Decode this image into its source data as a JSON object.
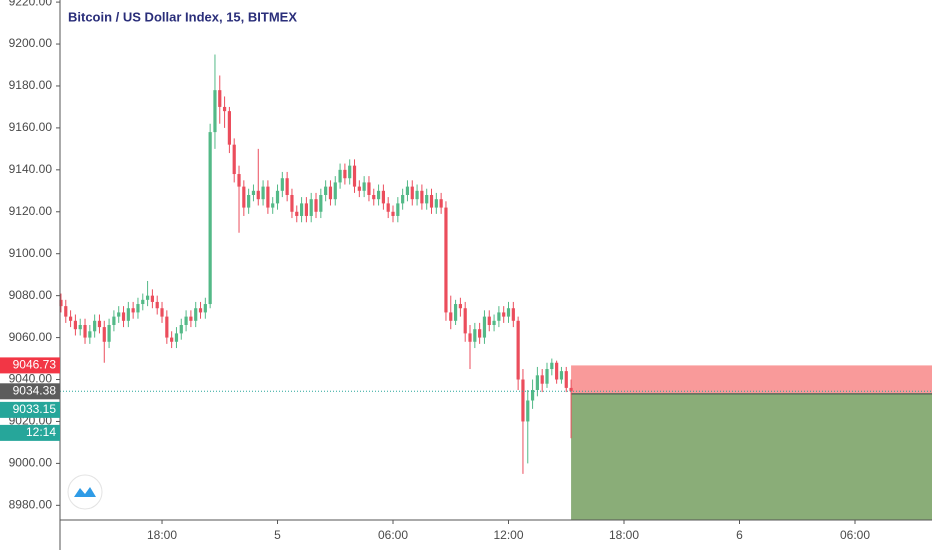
{
  "chart_data": {
    "type": "candlestick",
    "title": "Bitcoin / US Dollar Index, 15, BITMEX",
    "x": [
      -11.25,
      -11,
      -10.75,
      -10.5,
      -10.25,
      -10,
      -9.75,
      -9.5,
      -9.25,
      -9,
      -8.75,
      -8.5,
      -8.25,
      -8,
      -7.75,
      -7.5,
      -7.25,
      -7,
      -6.75,
      -6.5,
      -6.25,
      -6,
      -5.75,
      -5.5,
      -5.25,
      -5,
      -4.75,
      -4.5,
      -4.25,
      -4,
      -3.75,
      -3.5,
      -3.25,
      -3,
      -2.75,
      -2.5,
      -2.25,
      -2,
      -1.75,
      -1.5,
      -1.25,
      -1,
      -0.75,
      -0.5,
      -0.25,
      0,
      0.25,
      0.5,
      0.75,
      1,
      1.25,
      1.5,
      1.75,
      2,
      2.25,
      2.5,
      2.75,
      3,
      3.25,
      3.5,
      3.75,
      4,
      4.25,
      4.5,
      4.75,
      5,
      5.25,
      5.5,
      5.75,
      6,
      6.25,
      6.5,
      6.75,
      7,
      7.25,
      7.5,
      7.75,
      8,
      8.25,
      8.5,
      8.75,
      9,
      9.25,
      9.5,
      9.75,
      10,
      10.25,
      10.5,
      10.75,
      11,
      11.25,
      11.5,
      11.75,
      12,
      12.25,
      12.5,
      12.75,
      13,
      13.25,
      13.5,
      13.75,
      14,
      14.25,
      14.5,
      14.75,
      15,
      15.25
    ],
    "open": [
      9078,
      9075,
      9070,
      9068,
      9064,
      9066,
      9060,
      9063,
      9068,
      9065,
      9058,
      9066,
      9070,
      9072,
      9068,
      9074,
      9072,
      9076,
      9078,
      9080,
      9077,
      9074,
      9070,
      9060,
      9058,
      9062,
      9066,
      9070,
      9068,
      9074,
      9072,
      9076,
      9158,
      9178,
      9170,
      9168,
      9152,
      9138,
      9132,
      9122,
      9128,
      9130,
      9126,
      9132,
      9122,
      9124,
      9130,
      9136,
      9128,
      9120,
      9118,
      9124,
      9118,
      9126,
      9120,
      9128,
      9132,
      9126,
      9134,
      9140,
      9136,
      9142,
      9132,
      9130,
      9134,
      9128,
      9126,
      9130,
      9124,
      9120,
      9118,
      9124,
      9128,
      9132,
      9126,
      9130,
      9124,
      9128,
      9122,
      9126,
      9122,
      9072,
      9068,
      9076,
      9074,
      9062,
      9058,
      9064,
      9060,
      9070,
      9066,
      9068,
      9072,
      9070,
      9074,
      9068,
      9040,
      9020,
      9030,
      9035,
      9042,
      9038,
      9045,
      9048,
      9040,
      9044,
      9036
    ],
    "high": [
      9081,
      9078,
      9073,
      9071,
      9069,
      9069,
      9066,
      9071,
      9071,
      9068,
      9069,
      9073,
      9075,
      9075,
      9077,
      9077,
      9079,
      9081,
      9087,
      9083,
      9080,
      9077,
      9073,
      9063,
      9065,
      9069,
      9073,
      9073,
      9077,
      9077,
      9079,
      9162,
      9195,
      9185,
      9175,
      9170,
      9155,
      9142,
      9135,
      9131,
      9133,
      9150,
      9135,
      9135,
      9127,
      9133,
      9139,
      9139,
      9131,
      9123,
      9127,
      9127,
      9129,
      9129,
      9131,
      9135,
      9135,
      9137,
      9143,
      9143,
      9145,
      9145,
      9135,
      9137,
      9137,
      9131,
      9133,
      9133,
      9127,
      9123,
      9127,
      9131,
      9135,
      9135,
      9133,
      9133,
      9131,
      9131,
      9129,
      9129,
      9125,
      9080,
      9078,
      9079,
      9077,
      9066,
      9067,
      9067,
      9073,
      9073,
      9071,
      9075,
      9075,
      9077,
      9077,
      9070,
      9045,
      9035,
      9040,
      9046,
      9045,
      9048,
      9050,
      9049,
      9046,
      9046,
      9040
    ],
    "low": [
      9072,
      9067,
      9065,
      9061,
      9061,
      9057,
      9057,
      9060,
      9062,
      9048,
      9055,
      9063,
      9067,
      9065,
      9065,
      9069,
      9069,
      9073,
      9075,
      9074,
      9071,
      9067,
      9057,
      9055,
      9055,
      9059,
      9063,
      9065,
      9065,
      9069,
      9069,
      9074,
      9150,
      9162,
      9160,
      9148,
      9134,
      9110,
      9118,
      9119,
      9125,
      9123,
      9123,
      9119,
      9119,
      9121,
      9127,
      9125,
      9117,
      9115,
      9115,
      9115,
      9115,
      9117,
      9117,
      9125,
      9123,
      9123,
      9131,
      9133,
      9133,
      9129,
      9127,
      9127,
      9125,
      9123,
      9123,
      9121,
      9117,
      9115,
      9115,
      9121,
      9125,
      9123,
      9123,
      9121,
      9121,
      9119,
      9119,
      9119,
      9068,
      9064,
      9066,
      9070,
      9058,
      9045,
      9055,
      9057,
      9057,
      9063,
      9063,
      9065,
      9067,
      9067,
      9065,
      9035,
      8995,
      9000,
      9026,
      9032,
      9034,
      9036,
      9042,
      9038,
      9038,
      9034,
      9012
    ],
    "close": [
      9075,
      9070,
      9068,
      9064,
      9066,
      9060,
      9063,
      9068,
      9065,
      9058,
      9066,
      9070,
      9072,
      9068,
      9074,
      9072,
      9076,
      9078,
      9080,
      9077,
      9074,
      9070,
      9060,
      9058,
      9062,
      9066,
      9070,
      9068,
      9074,
      9072,
      9076,
      9158,
      9178,
      9170,
      9168,
      9152,
      9138,
      9132,
      9122,
      9128,
      9130,
      9126,
      9132,
      9122,
      9124,
      9130,
      9136,
      9128,
      9120,
      9118,
      9124,
      9118,
      9126,
      9120,
      9128,
      9132,
      9126,
      9134,
      9140,
      9136,
      9142,
      9132,
      9130,
      9134,
      9128,
      9126,
      9130,
      9124,
      9120,
      9118,
      9124,
      9128,
      9132,
      9126,
      9130,
      9124,
      9128,
      9122,
      9126,
      9122,
      9072,
      9068,
      9076,
      9074,
      9062,
      9058,
      9064,
      9060,
      9070,
      9066,
      9068,
      9072,
      9070,
      9074,
      9068,
      9040,
      9020,
      9030,
      9035,
      9042,
      9038,
      9045,
      9048,
      9040,
      9044,
      9036,
      9034.38
    ],
    "up_color": "#53b987",
    "down_color": "#eb4d5c",
    "xlim": [
      -11.3,
      34
    ],
    "ylim": [
      8973,
      9221
    ],
    "xticks": [
      {
        "value": -6,
        "label": "18:00"
      },
      {
        "value": 0,
        "label": "5"
      },
      {
        "value": 6,
        "label": "06:00"
      },
      {
        "value": 12,
        "label": "12:00"
      },
      {
        "value": 18,
        "label": "18:00"
      },
      {
        "value": 24,
        "label": "6"
      },
      {
        "value": 30,
        "label": "06:00"
      }
    ],
    "yticks": [
      {
        "value": 8980,
        "label": "8980.00"
      },
      {
        "value": 9000,
        "label": "9000.00"
      },
      {
        "value": 9020,
        "label": "9020.00"
      },
      {
        "value": 9040,
        "label": "9040.00"
      },
      {
        "value": 9060,
        "label": "9060.00"
      },
      {
        "value": 9080,
        "label": "9080.00"
      },
      {
        "value": 9100,
        "label": "9100.00"
      },
      {
        "value": 9120,
        "label": "9120.00"
      },
      {
        "value": 9140,
        "label": "9140.00"
      },
      {
        "value": 9160,
        "label": "9160.00"
      },
      {
        "value": 9180,
        "label": "9180.00"
      },
      {
        "value": 9200,
        "label": "9200.00"
      },
      {
        "value": 9220,
        "label": "9220.00"
      }
    ],
    "last_price": 9034.38,
    "countdown": "12:14",
    "position": {
      "stop_price": 9046.73,
      "entry_price": 9033.15,
      "stop_color": "#f99a9a",
      "target_color": "#8aad78"
    }
  }
}
